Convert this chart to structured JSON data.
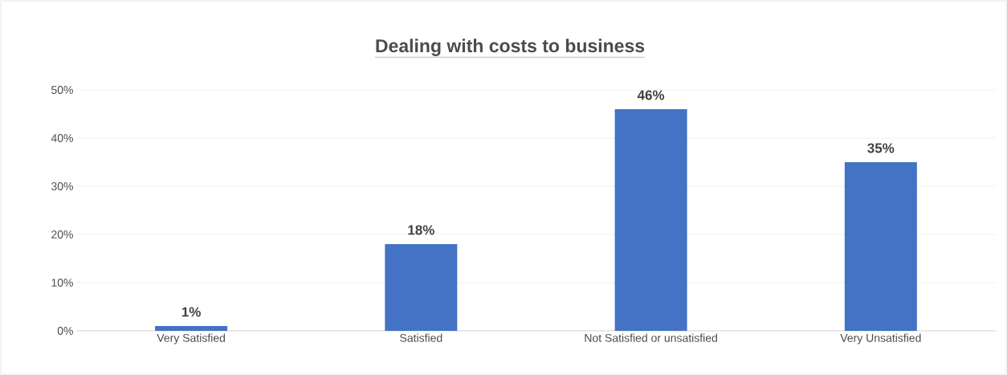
{
  "chart_data": {
    "type": "bar",
    "title": "Dealing with costs to business",
    "categories": [
      "Very Satisfied",
      "Satisfied",
      "Not Satisfied or unsatisfied",
      "Very Unsatisfied"
    ],
    "values": [
      1,
      18,
      46,
      35
    ],
    "value_labels": [
      "1%",
      "18%",
      "46%",
      "35%"
    ],
    "color": "#4472c4",
    "ylim": [
      0,
      50
    ],
    "yticks": [
      {
        "value": 0,
        "label": "0%"
      },
      {
        "value": 10,
        "label": "10%"
      },
      {
        "value": 20,
        "label": "20%"
      },
      {
        "value": 30,
        "label": "30%"
      },
      {
        "value": 40,
        "label": "40%"
      },
      {
        "value": 50,
        "label": "50%"
      }
    ],
    "grid": "y"
  }
}
